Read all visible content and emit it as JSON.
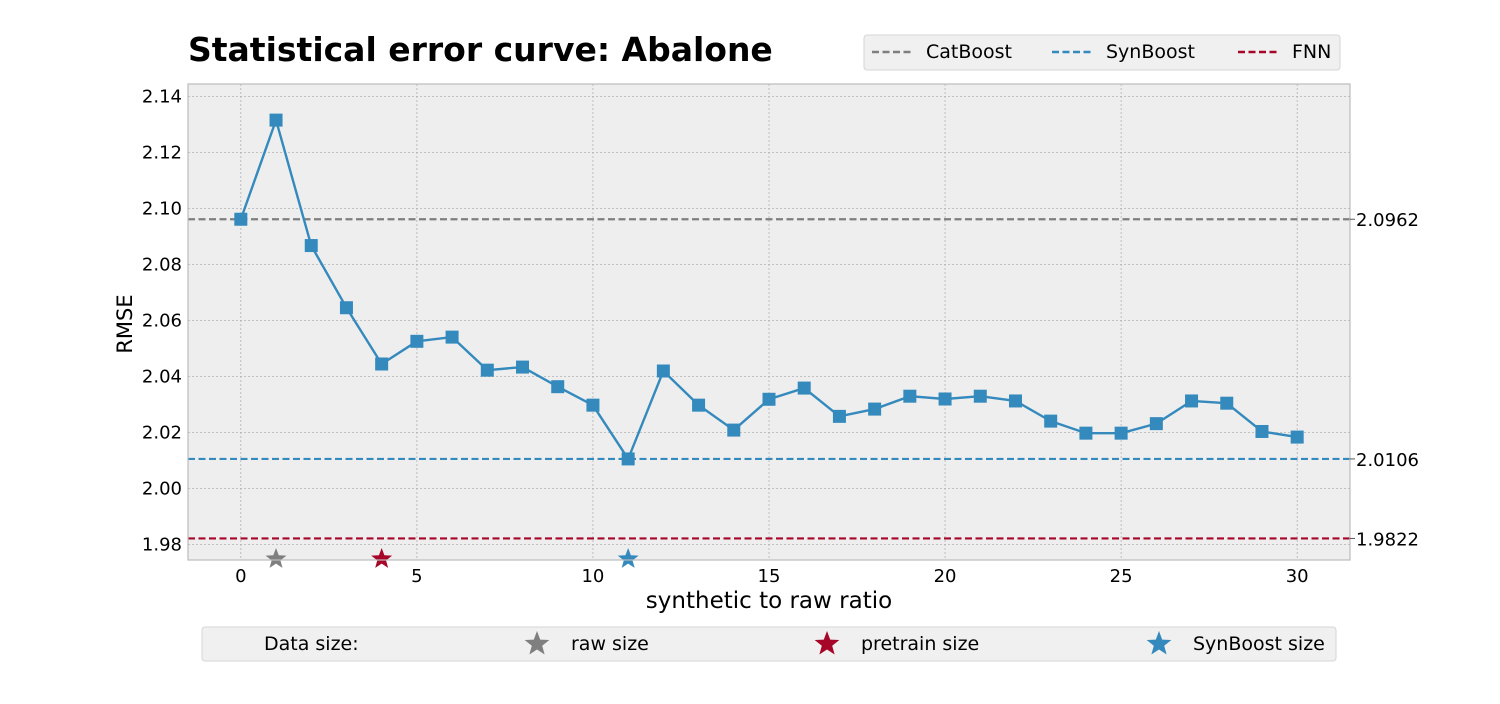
{
  "chart_data": {
    "type": "line",
    "title": "Statistical error curve: Abalone",
    "xlabel": "synthetic to raw ratio",
    "ylabel": "RMSE",
    "xlim": [
      -1.5,
      31.5
    ],
    "ylim": [
      1.9745,
      2.1445
    ],
    "x_ticks": [
      0,
      5,
      10,
      15,
      20,
      25,
      30
    ],
    "y_ticks": [
      1.98,
      2.0,
      2.02,
      2.04,
      2.06,
      2.08,
      2.1,
      2.12,
      2.14
    ],
    "grid": true,
    "x": [
      0,
      1,
      2,
      3,
      4,
      5,
      6,
      7,
      8,
      9,
      10,
      11,
      12,
      13,
      14,
      15,
      16,
      17,
      18,
      19,
      20,
      21,
      22,
      23,
      24,
      25,
      26,
      27,
      28,
      29,
      30
    ],
    "series": [
      {
        "color": "#348ABD",
        "marker": "square",
        "values": [
          2.0962,
          2.1316,
          2.0868,
          2.0646,
          2.0445,
          2.0526,
          2.0541,
          2.0423,
          2.0434,
          2.0364,
          2.0298,
          2.0106,
          2.042,
          2.0298,
          2.0209,
          2.0319,
          2.0359,
          2.0258,
          2.0284,
          2.033,
          2.032,
          2.033,
          2.0313,
          2.0241,
          2.0198,
          2.0198,
          2.0232,
          2.0313,
          2.0305,
          2.0204,
          2.0184
        ]
      }
    ],
    "reference_lines": [
      {
        "name": "CatBoost",
        "value": 2.0962,
        "label": "2.0962",
        "color": "#7f7f7f"
      },
      {
        "name": "SynBoost",
        "value": 2.0106,
        "label": "2.0106",
        "color": "#348ABD"
      },
      {
        "name": "FNN",
        "value": 1.9822,
        "label": "1.9822",
        "color": "#A60628"
      }
    ],
    "size_markers": [
      {
        "name": "raw size",
        "x": 1,
        "color": "#7f7f7f"
      },
      {
        "name": "pretrain size",
        "x": 4,
        "color": "#A60628"
      },
      {
        "name": "SynBoost size",
        "x": 11,
        "color": "#348ABD"
      }
    ],
    "legend_top": {
      "position": "top-right",
      "entries": [
        "CatBoost",
        "SynBoost",
        "FNN"
      ]
    },
    "legend_bottom": {
      "position": "bottom",
      "title": "Data size:",
      "entries": [
        "raw size",
        "pretrain size",
        "SynBoost size"
      ]
    }
  }
}
